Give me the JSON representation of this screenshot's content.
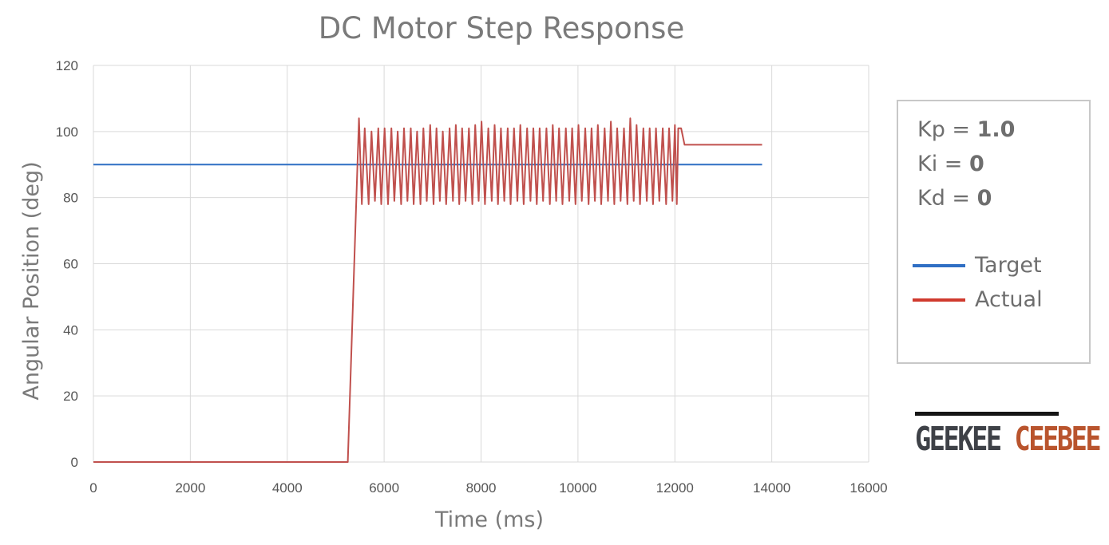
{
  "chart_data": {
    "type": "line",
    "title": "DC Motor Step Response",
    "xlabel": "Time (ms)",
    "ylabel": "Angular Position (deg)",
    "xlim": [
      0,
      16000
    ],
    "ylim": [
      0,
      120
    ],
    "x_ticks": [
      0,
      2000,
      4000,
      6000,
      8000,
      10000,
      12000,
      14000,
      16000
    ],
    "y_ticks": [
      0,
      20,
      40,
      60,
      80,
      100,
      120
    ],
    "grid": true,
    "legend_position": "right",
    "series": [
      {
        "name": "Target",
        "color": "#2f6fc4",
        "points": [
          [
            0,
            90
          ],
          [
            13800,
            90
          ]
        ]
      },
      {
        "name": "Actual",
        "color": "#c0504d",
        "points": [
          [
            0,
            0
          ],
          [
            5250,
            0
          ],
          [
            5480,
            104
          ],
          [
            5540,
            78
          ],
          [
            5600,
            101
          ],
          [
            5680,
            78
          ],
          [
            5740,
            100
          ],
          [
            5810,
            79
          ],
          [
            5880,
            101
          ],
          [
            5940,
            78
          ],
          [
            6010,
            101
          ],
          [
            6080,
            78
          ],
          [
            6150,
            101
          ],
          [
            6210,
            79
          ],
          [
            6280,
            100
          ],
          [
            6350,
            78
          ],
          [
            6410,
            101
          ],
          [
            6480,
            79
          ],
          [
            6550,
            101
          ],
          [
            6610,
            78
          ],
          [
            6680,
            100
          ],
          [
            6750,
            78
          ],
          [
            6810,
            101
          ],
          [
            6880,
            79
          ],
          [
            6950,
            102
          ],
          [
            7020,
            78
          ],
          [
            7080,
            101
          ],
          [
            7150,
            79
          ],
          [
            7210,
            100
          ],
          [
            7280,
            78
          ],
          [
            7350,
            101
          ],
          [
            7420,
            79
          ],
          [
            7480,
            102
          ],
          [
            7550,
            78
          ],
          [
            7610,
            101
          ],
          [
            7680,
            79
          ],
          [
            7750,
            101
          ],
          [
            7820,
            78
          ],
          [
            7880,
            102
          ],
          [
            7950,
            79
          ],
          [
            8010,
            103
          ],
          [
            8080,
            78
          ],
          [
            8150,
            101
          ],
          [
            8220,
            79
          ],
          [
            8280,
            102
          ],
          [
            8350,
            78
          ],
          [
            8410,
            101
          ],
          [
            8480,
            79
          ],
          [
            8550,
            101
          ],
          [
            8610,
            78
          ],
          [
            8680,
            101
          ],
          [
            8750,
            79
          ],
          [
            8810,
            102
          ],
          [
            8880,
            78
          ],
          [
            8950,
            101
          ],
          [
            9020,
            79
          ],
          [
            9080,
            101
          ],
          [
            9150,
            78
          ],
          [
            9210,
            101
          ],
          [
            9280,
            79
          ],
          [
            9350,
            101
          ],
          [
            9420,
            78
          ],
          [
            9480,
            102
          ],
          [
            9550,
            79
          ],
          [
            9610,
            101
          ],
          [
            9680,
            78
          ],
          [
            9750,
            101
          ],
          [
            9820,
            79
          ],
          [
            9880,
            101
          ],
          [
            9950,
            78
          ],
          [
            10010,
            102
          ],
          [
            10080,
            79
          ],
          [
            10150,
            101
          ],
          [
            10220,
            78
          ],
          [
            10280,
            101
          ],
          [
            10350,
            79
          ],
          [
            10410,
            102
          ],
          [
            10480,
            78
          ],
          [
            10550,
            101
          ],
          [
            10620,
            79
          ],
          [
            10680,
            103
          ],
          [
            10750,
            78
          ],
          [
            10810,
            101
          ],
          [
            10880,
            79
          ],
          [
            10950,
            101
          ],
          [
            11020,
            78
          ],
          [
            11080,
            104
          ],
          [
            11150,
            79
          ],
          [
            11210,
            102
          ],
          [
            11280,
            78
          ],
          [
            11350,
            101
          ],
          [
            11420,
            79
          ],
          [
            11480,
            101
          ],
          [
            11550,
            78
          ],
          [
            11610,
            101
          ],
          [
            11680,
            79
          ],
          [
            11750,
            101
          ],
          [
            11820,
            78
          ],
          [
            11880,
            101
          ],
          [
            11950,
            79
          ],
          [
            12000,
            102
          ],
          [
            12040,
            78
          ],
          [
            12070,
            101
          ],
          [
            12130,
            101
          ],
          [
            12200,
            96
          ],
          [
            13800,
            96
          ]
        ]
      }
    ]
  },
  "legend": {
    "params": [
      {
        "label": "Kp = ",
        "value": "1.0"
      },
      {
        "label": "Ki = ",
        "value": "0"
      },
      {
        "label": "Kd = ",
        "value": "0"
      }
    ],
    "entries": [
      {
        "label": "Target",
        "color": "#2f6fc4"
      },
      {
        "label": "Actual",
        "color": "#d03a2e"
      }
    ]
  },
  "logo": {
    "word1": "GEEKEE",
    "word2": "CEEBEE"
  }
}
